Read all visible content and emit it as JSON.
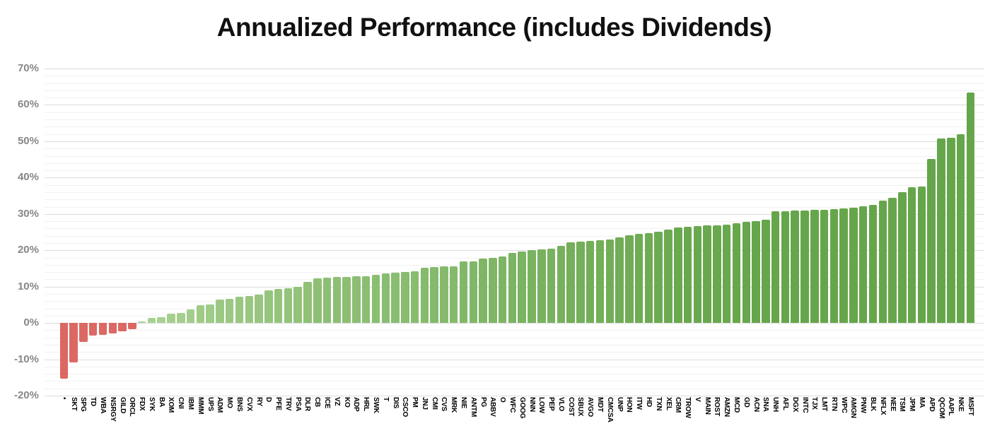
{
  "chart_data": {
    "type": "bar",
    "title": "Annualized Performance (includes Dividends)",
    "xlabel": "",
    "ylabel": "",
    "ylim": [
      -20,
      70
    ],
    "y_tick_step": 10,
    "y_minor_step": 2,
    "grid": true,
    "legend": false,
    "y_tick_labels": [
      "70%",
      "60%",
      "50%",
      "40%",
      "30%",
      "20%",
      "10%",
      "0%",
      "-10%",
      "-20%"
    ],
    "categories": [
      "•",
      "SKT",
      "SPG",
      "TD",
      "WBA",
      "NSRGY",
      "GILD",
      "ORCL",
      "FDX",
      "SYK",
      "BA",
      "XOM",
      "CNI",
      "IBM",
      "MMM",
      "UPS",
      "ADM",
      "MO",
      "BNS",
      "CVX",
      "RY",
      "D",
      "PFE",
      "TRV",
      "PSA",
      "DLR",
      "CB",
      "ICE",
      "VZ",
      "KO",
      "ADP",
      "HRL",
      "SWK",
      "T",
      "DIS",
      "CSCO",
      "PM",
      "JNJ",
      "CMI",
      "CVS",
      "MRK",
      "NIE",
      "ANTM",
      "PG",
      "ABBV",
      "O",
      "WFC",
      "GOOG",
      "NNN",
      "LOW",
      "PEP",
      "VLO",
      "COST",
      "SBUX",
      "AVGO",
      "MDT",
      "CMCSA",
      "UNP",
      "HON",
      "ITW",
      "HD",
      "TXN",
      "XEL",
      "CRM",
      "TROW",
      "V",
      "MAIN",
      "ROST",
      "AMZN",
      "MCD",
      "GD",
      "ACN",
      "SNA",
      "UNH",
      "AFL",
      "DGX",
      "INTC",
      "TJX",
      "LMT",
      "RTN",
      "WPC",
      "AMGN",
      "PNW",
      "BLK",
      "NFLX",
      "NEE",
      "TSM",
      "JPM",
      "MA",
      "APD",
      "QCOM",
      "AAPL",
      "NKE",
      "MSFT"
    ],
    "values": [
      -15.4,
      -10.8,
      -5.2,
      -3.4,
      -3.2,
      -2.9,
      -2.4,
      -1.7,
      0.5,
      1.3,
      1.5,
      2.6,
      2.7,
      3.7,
      4.8,
      5.1,
      6.4,
      6.7,
      7.2,
      7.5,
      7.8,
      9.0,
      9.3,
      9.6,
      9.9,
      11.4,
      12.3,
      12.4,
      12.6,
      12.7,
      12.8,
      12.9,
      13.3,
      13.6,
      13.9,
      14.1,
      14.3,
      15.2,
      15.4,
      15.5,
      15.6,
      16.9,
      17.0,
      17.8,
      18.0,
      18.4,
      19.3,
      19.7,
      20.1,
      20.3,
      20.5,
      21.2,
      22.2,
      22.4,
      22.6,
      22.7,
      23.0,
      23.6,
      24.1,
      24.5,
      24.8,
      25.1,
      25.7,
      26.2,
      26.5,
      26.7,
      26.8,
      26.9,
      27.0,
      27.5,
      27.8,
      28.1,
      28.4,
      30.7,
      30.8,
      30.9,
      31.0,
      31.1,
      31.2,
      31.3,
      31.5,
      31.8,
      32.1,
      32.4,
      33.6,
      34.5,
      36.0,
      37.3,
      37.6,
      45.2,
      50.8,
      50.9,
      51.9,
      63.4
    ],
    "bar_colors": {
      "negative": "#DB6863",
      "positive_min": "#ABD394",
      "positive_max": "#66A64B",
      "positive_max_at": 28
    },
    "axis_colors": {
      "grid_major": "#DBDBDB",
      "grid_minor": "#F1F1F1",
      "y_label": "#878787",
      "x_label": "#000000"
    },
    "background": "#FFFFFF"
  }
}
